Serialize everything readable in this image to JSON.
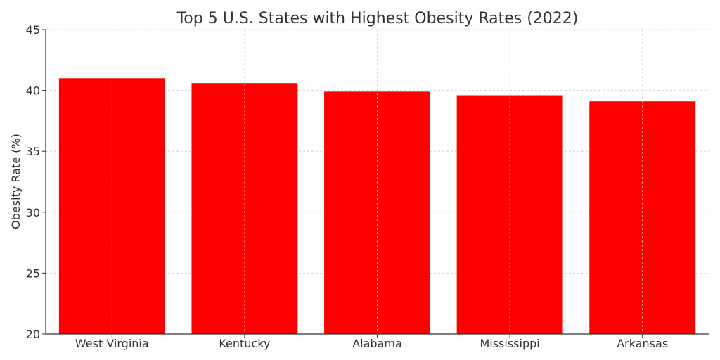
{
  "chart_data": {
    "type": "bar",
    "title": "Top 5 U.S. States with Highest Obesity Rates (2022)",
    "xlabel": "",
    "ylabel": "Obesity Rate (%)",
    "categories": [
      "West Virginia",
      "Kentucky",
      "Alabama",
      "Mississippi",
      "Arkansas"
    ],
    "values": [
      41.0,
      40.6,
      39.9,
      39.6,
      39.1
    ],
    "ylim": [
      20,
      45
    ],
    "yticks": [
      20,
      25,
      30,
      35,
      40,
      45
    ],
    "bar_color": "#ff0000",
    "grid": true,
    "legend": "none"
  }
}
